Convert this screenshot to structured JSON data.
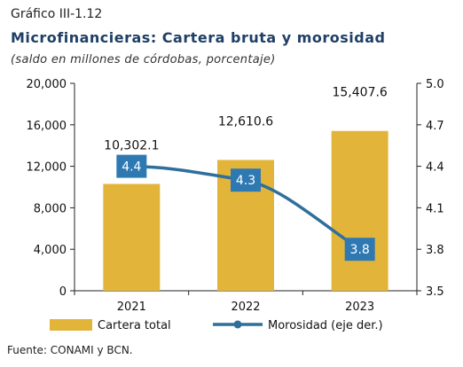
{
  "figure": {
    "label": "Gráfico III-1.12",
    "title": "Microfinancieras: Cartera bruta y morosidad",
    "subtitle": "(saldo en millones de córdobas, porcentaje)",
    "source": "Fuente: CONAMI y BCN."
  },
  "colors": {
    "bar": "#e2b53a",
    "line": "#2e6f9b",
    "marker": "#2f79b3"
  },
  "chart_data": {
    "type": "bar",
    "categories": [
      "2021",
      "2022",
      "2023"
    ],
    "series": [
      {
        "name": "Cartera total",
        "type": "bar",
        "axis": "left",
        "values": [
          10302.1,
          12610.6,
          15407.6
        ],
        "labels": [
          "10,302.1",
          "12,610.6",
          "15,407.6"
        ]
      },
      {
        "name": "Morosidad  (eje der.)",
        "type": "line",
        "axis": "right",
        "values": [
          4.4,
          4.3,
          3.8
        ],
        "labels": [
          "4.4",
          "4.3",
          "3.8"
        ]
      }
    ],
    "y_left": {
      "min": 0,
      "max": 20000,
      "ticks": [
        0,
        4000,
        8000,
        12000,
        16000,
        20000
      ],
      "tick_labels": [
        "0",
        "4,000",
        "8,000",
        "12,000",
        "16,000",
        "20,000"
      ]
    },
    "y_right": {
      "min": 3.5,
      "max": 5.0,
      "ticks": [
        3.5,
        3.8,
        4.1,
        4.4,
        4.7,
        5.0
      ],
      "tick_labels": [
        "3.5",
        "3.8",
        "4.1",
        "4.4",
        "4.7",
        "5.0"
      ]
    },
    "legend": [
      "Cartera total",
      "Morosidad  (eje der.)"
    ],
    "legend_position": "bottom",
    "grid": false
  }
}
